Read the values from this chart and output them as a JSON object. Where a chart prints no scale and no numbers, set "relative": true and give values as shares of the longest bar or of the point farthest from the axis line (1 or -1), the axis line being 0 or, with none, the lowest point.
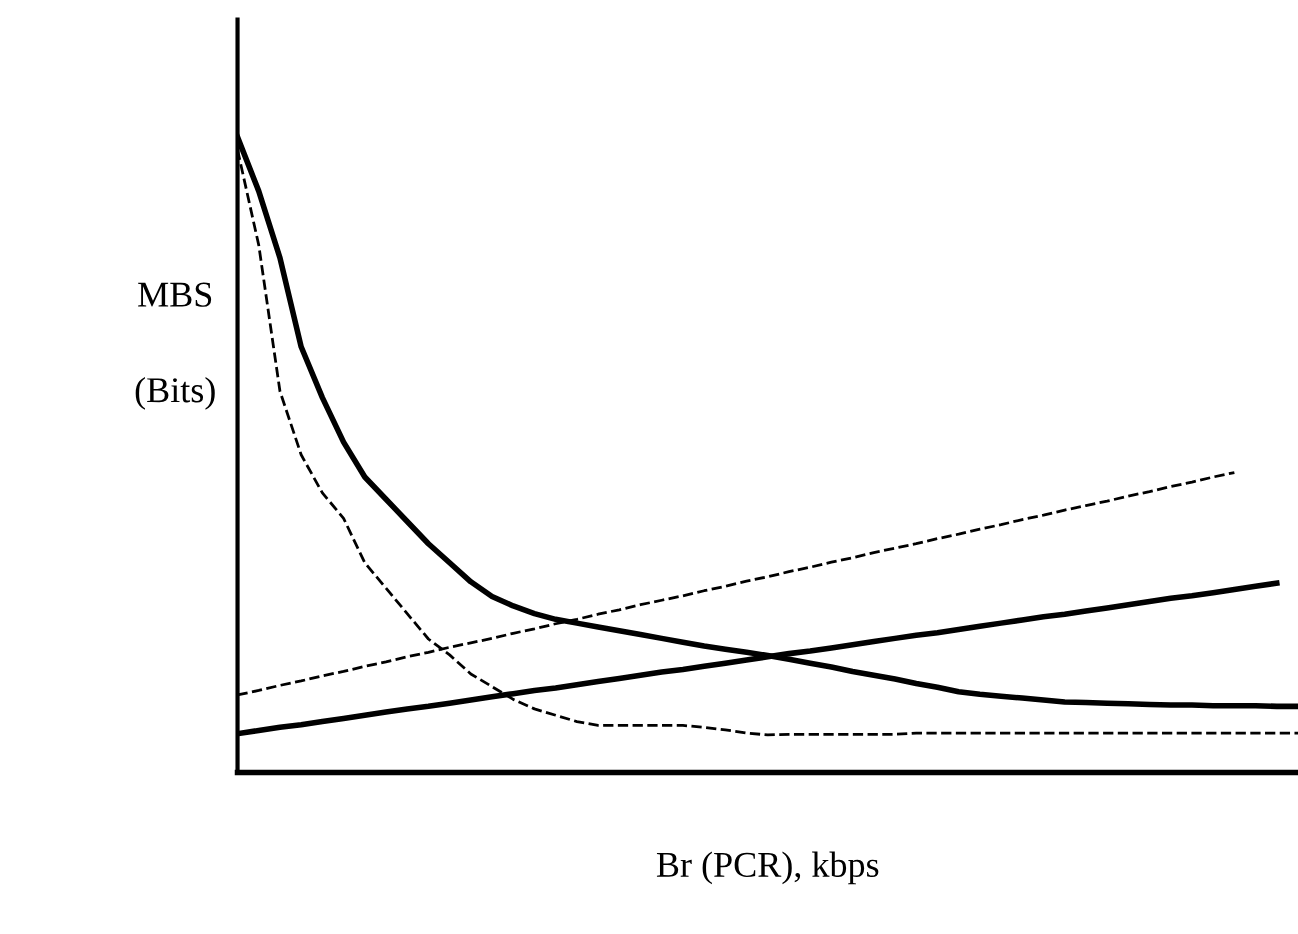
{
  "chart_data": {
    "type": "line",
    "relative": true,
    "xlabel": "Br (PCR), kbps",
    "ylabel": "MBS\n\n(Bits)",
    "legend": false,
    "marker": "none",
    "categories": [
      null,
      null,
      null,
      null,
      null,
      null,
      null,
      null,
      null,
      null,
      null,
      null,
      null,
      null,
      null,
      null,
      null,
      null,
      null,
      null,
      null,
      null,
      null,
      null,
      null,
      null,
      null,
      null,
      null,
      null,
      null,
      null,
      null,
      null,
      null,
      null,
      null,
      null,
      null,
      null,
      null,
      null,
      null,
      null,
      null,
      null,
      null,
      null,
      null,
      null,
      null
    ],
    "series": [
      {
        "color": "#000000",
        "line_style": "solid",
        "values": [
          1.0,
          0.915,
          0.81,
          0.67,
          0.59,
          0.52,
          0.465,
          0.43,
          0.395,
          0.36,
          0.33,
          0.3,
          0.277,
          0.262,
          0.25,
          0.241,
          0.235,
          0.229,
          0.223,
          0.217,
          0.211,
          0.205,
          0.199,
          0.194,
          0.189,
          0.184,
          0.178,
          0.172,
          0.166,
          0.159,
          0.153,
          0.147,
          0.14,
          0.134,
          0.127,
          0.123,
          0.12,
          0.117,
          0.114,
          0.111,
          0.11,
          0.109,
          0.108,
          0.107,
          0.106,
          0.106,
          0.105,
          0.105,
          0.105,
          0.104,
          0.104
        ]
      },
      {
        "color": "#000000",
        "line_style": "dashed",
        "values": [
          0.98,
          0.83,
          0.6,
          0.5,
          0.44,
          0.4,
          0.33,
          0.29,
          0.25,
          0.21,
          0.185,
          0.155,
          0.135,
          0.115,
          0.1,
          0.09,
          0.08,
          0.074,
          0.074,
          0.074,
          0.074,
          0.074,
          0.071,
          0.067,
          0.062,
          0.059,
          0.06,
          0.06,
          0.06,
          0.06,
          0.06,
          0.06,
          0.062,
          0.062,
          0.062,
          0.062,
          0.062,
          0.062,
          0.062,
          0.062,
          0.062,
          0.062,
          0.062,
          0.062,
          0.062,
          0.062,
          0.062,
          0.062,
          0.062,
          0.062,
          0.062
        ]
      },
      {
        "color": "#000000",
        "line_style": "solid",
        "values": [
          0.061,
          0.066,
          0.071,
          0.075,
          0.08,
          0.085,
          0.09,
          0.095,
          0.1,
          0.104,
          0.109,
          0.114,
          0.119,
          0.124,
          0.129,
          0.133,
          0.138,
          0.143,
          0.148,
          0.153,
          0.158,
          0.162,
          0.167,
          0.172,
          0.177,
          0.182,
          0.187,
          0.191,
          0.196,
          0.201,
          0.206,
          0.211,
          0.216,
          0.22,
          0.225,
          0.23,
          0.235,
          0.24,
          0.245,
          0.249,
          0.254,
          0.259,
          0.264,
          0.269,
          0.274,
          0.278,
          0.283,
          0.288,
          0.293,
          0.298,
          null
        ]
      },
      {
        "color": "#000000",
        "line_style": "dashed",
        "values": [
          0.122,
          0.129,
          0.137,
          0.144,
          0.152,
          0.159,
          0.167,
          0.174,
          0.182,
          0.189,
          0.197,
          0.204,
          0.211,
          0.219,
          0.226,
          0.234,
          0.241,
          0.249,
          0.256,
          0.264,
          0.271,
          0.278,
          0.286,
          0.293,
          0.301,
          0.308,
          0.316,
          0.323,
          0.331,
          0.338,
          0.346,
          0.353,
          0.36,
          0.368,
          0.375,
          0.383,
          0.39,
          0.398,
          0.405,
          0.413,
          0.42,
          0.427,
          0.435,
          0.442,
          0.45,
          0.457,
          0.465,
          0.472,
          null,
          null,
          null
        ]
      }
    ]
  }
}
